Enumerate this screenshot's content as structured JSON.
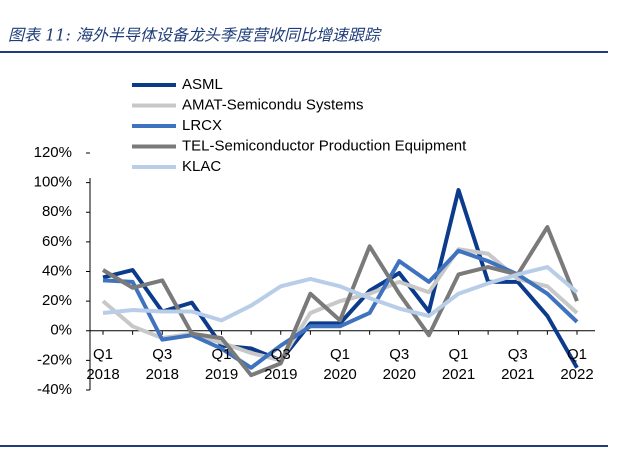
{
  "chart_data": {
    "type": "line",
    "title": "图表 11: 海外半导体设备龙头季度营收同比增速跟踪",
    "categories": [
      "Q1 2018",
      null,
      "Q3 2018",
      null,
      "Q1 2019",
      null,
      "Q3 2019",
      null,
      "Q1 2020",
      null,
      "Q3 2020",
      null,
      "Q1 2021",
      null,
      "Q3 2021",
      null,
      "Q1 2022"
    ],
    "series": [
      {
        "name": "ASML",
        "color": "#0d3b8c",
        "values": [
          36,
          41,
          13,
          19,
          -10,
          -12,
          -20,
          5,
          5,
          27,
          39,
          13,
          95,
          33,
          33,
          10,
          -25
        ]
      },
      {
        "name": "AMAT-Semicondu Systems",
        "color": "#c8c8c8",
        "values": [
          20,
          3,
          -5,
          -2,
          -8,
          -15,
          -20,
          12,
          20,
          25,
          33,
          26,
          55,
          52,
          35,
          30,
          12
        ]
      },
      {
        "name": "LRCX",
        "color": "#3f73c0",
        "values": [
          34,
          33,
          -6,
          -3,
          -12,
          -25,
          -10,
          3,
          3,
          12,
          47,
          33,
          54,
          47,
          38,
          25,
          6
        ]
      },
      {
        "name": "TEL-Semiconductor Production Equipment",
        "color": "#7a7a7a",
        "values": [
          41,
          29,
          34,
          -2,
          -5,
          -30,
          -22,
          25,
          7,
          57,
          25,
          -3,
          38,
          43,
          38,
          70,
          20
        ]
      },
      {
        "name": "KLAC",
        "color": "#b8cde8",
        "values": [
          12,
          14,
          13,
          13,
          7,
          17,
          30,
          35,
          30,
          22,
          15,
          10,
          25,
          32,
          38,
          43,
          26
        ]
      }
    ],
    "ylim": [
      -40,
      120
    ],
    "yticks": [
      {
        "value": -40,
        "label": "-40%"
      },
      {
        "value": -20,
        "label": "-20%"
      },
      {
        "value": 0,
        "label": "0%"
      },
      {
        "value": 20,
        "label": "20%"
      },
      {
        "value": 40,
        "label": "40%"
      },
      {
        "value": 60,
        "label": "60%"
      },
      {
        "value": 80,
        "label": "80%"
      },
      {
        "value": 100,
        "label": "100%"
      },
      {
        "value": 120,
        "label": "120%"
      }
    ]
  }
}
